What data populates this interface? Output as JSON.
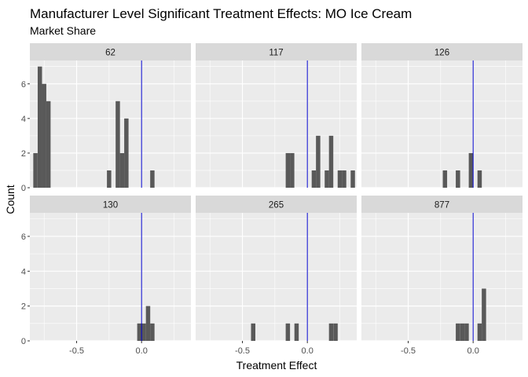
{
  "chart_data": {
    "type": "bar",
    "subtype": "faceted-histogram",
    "title": "Manufacturer Level Significant Treatment Effects: MO Ice Cream",
    "subtitle": "Market Share",
    "xlabel": "Treatment Effect",
    "ylabel": "Count",
    "xlim": [
      -0.86,
      0.38
    ],
    "ylim": [
      0,
      7.35
    ],
    "x_ticks": [
      -0.5,
      0.0
    ],
    "x_tick_labels": [
      "-0.5",
      "0.0"
    ],
    "y_ticks": [
      0,
      2,
      4,
      6
    ],
    "y_tick_labels": [
      "0",
      "2",
      "4",
      "6"
    ],
    "bin_width": 0.0333,
    "reference_line_x": 0,
    "colors": {
      "panel_background": "#ebebeb",
      "grid": "#ffffff",
      "strip_background": "#d9d9d9",
      "bar_fill": "#595959",
      "reference_line": "#0000cc"
    },
    "grid": true,
    "facets": [
      {
        "label": "62",
        "bins": [
          {
            "x": -0.817,
            "count": 2
          },
          {
            "x": -0.783,
            "count": 7
          },
          {
            "x": -0.75,
            "count": 6
          },
          {
            "x": -0.717,
            "count": 5
          },
          {
            "x": -0.25,
            "count": 1
          },
          {
            "x": -0.183,
            "count": 5
          },
          {
            "x": -0.15,
            "count": 2
          },
          {
            "x": -0.117,
            "count": 4
          },
          {
            "x": 0.083,
            "count": 1
          }
        ]
      },
      {
        "label": "117",
        "bins": [
          {
            "x": -0.15,
            "count": 2
          },
          {
            "x": -0.117,
            "count": 2
          },
          {
            "x": 0.05,
            "count": 1
          },
          {
            "x": 0.083,
            "count": 3
          },
          {
            "x": 0.15,
            "count": 1
          },
          {
            "x": 0.183,
            "count": 3
          },
          {
            "x": 0.25,
            "count": 1
          },
          {
            "x": 0.283,
            "count": 1
          },
          {
            "x": 0.35,
            "count": 1
          }
        ]
      },
      {
        "label": "126",
        "bins": [
          {
            "x": -0.217,
            "count": 1
          },
          {
            "x": -0.117,
            "count": 1
          },
          {
            "x": -0.017,
            "count": 2
          },
          {
            "x": 0.05,
            "count": 1
          }
        ]
      },
      {
        "label": "130",
        "bins": [
          {
            "x": -0.017,
            "count": 1
          },
          {
            "x": 0.017,
            "count": 1
          },
          {
            "x": 0.05,
            "count": 2
          },
          {
            "x": 0.083,
            "count": 1
          }
        ]
      },
      {
        "label": "265",
        "bins": [
          {
            "x": -0.417,
            "count": 1
          },
          {
            "x": -0.15,
            "count": 1
          },
          {
            "x": -0.083,
            "count": 1
          },
          {
            "x": 0.183,
            "count": 1
          },
          {
            "x": 0.217,
            "count": 1
          }
        ]
      },
      {
        "label": "877",
        "bins": [
          {
            "x": -0.117,
            "count": 1
          },
          {
            "x": -0.083,
            "count": 1
          },
          {
            "x": -0.05,
            "count": 1
          },
          {
            "x": 0.05,
            "count": 1
          },
          {
            "x": 0.083,
            "count": 3
          }
        ]
      }
    ]
  }
}
